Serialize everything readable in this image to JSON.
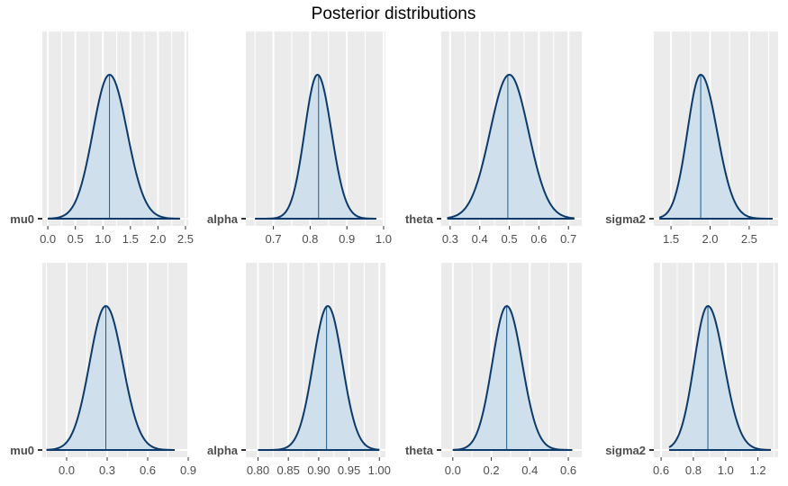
{
  "title": "Posterior distributions",
  "colors": {
    "panel_bg": "#ebebeb",
    "grid": "#ffffff",
    "density_line": "#0b3a6b",
    "density_fill": "#cfe0ec",
    "center_line": "#1b5d8c",
    "tick_text": "#4d4d4d"
  },
  "chart_data": [
    {
      "type": "area",
      "row": 1,
      "col": 1,
      "parameter": "mu0",
      "xticks": [
        "0.0",
        "0.5",
        "1.0",
        "1.5",
        "2.0",
        "2.5"
      ],
      "xtick_values": [
        0,
        0.5,
        1.0,
        1.5,
        2.0,
        2.5
      ],
      "xlim": [
        -0.1,
        2.55
      ],
      "range": [
        0.0,
        2.4
      ],
      "center": 1.12,
      "peak": 1.12,
      "sd_left": 0.3,
      "sd_right": 0.32
    },
    {
      "type": "area",
      "row": 1,
      "col": 2,
      "parameter": "alpha",
      "xticks": [
        "0.7",
        "0.8",
        "0.9",
        "1.0"
      ],
      "xtick_values": [
        0.7,
        0.8,
        0.9,
        1.0
      ],
      "xlim": [
        0.625,
        1.005
      ],
      "range": [
        0.65,
        0.98
      ],
      "center": 0.823,
      "peak": 0.82,
      "sd_left": 0.035,
      "sd_right": 0.038
    },
    {
      "type": "area",
      "row": 1,
      "col": 3,
      "parameter": "theta",
      "xticks": [
        "0.3",
        "0.4",
        "0.5",
        "0.6",
        "0.7"
      ],
      "xtick_values": [
        0.3,
        0.4,
        0.5,
        0.6,
        0.7
      ],
      "xlim": [
        0.27,
        0.745
      ],
      "range": [
        0.29,
        0.72
      ],
      "center": 0.495,
      "peak": 0.5,
      "sd_left": 0.065,
      "sd_right": 0.065
    },
    {
      "type": "area",
      "row": 1,
      "col": 4,
      "parameter": "sigma2",
      "xticks": [
        "1.5",
        "2.0",
        "2.5"
      ],
      "xtick_values": [
        1.5,
        2.0,
        2.5
      ],
      "xlim": [
        1.28,
        2.87
      ],
      "range": [
        1.35,
        2.8
      ],
      "center": 1.88,
      "peak": 1.88,
      "sd_left": 0.17,
      "sd_right": 0.21
    },
    {
      "type": "area",
      "row": 2,
      "col": 1,
      "parameter": "mu0",
      "xticks": [
        "0.0",
        "0.3",
        "0.6",
        "0.9"
      ],
      "xtick_values": [
        0.0,
        0.3,
        0.6,
        0.9
      ],
      "xlim": [
        -0.18,
        0.9
      ],
      "range": [
        -0.15,
        0.8
      ],
      "center": 0.29,
      "peak": 0.29,
      "sd_left": 0.12,
      "sd_right": 0.125
    },
    {
      "type": "area",
      "row": 2,
      "col": 2,
      "parameter": "alpha",
      "xticks": [
        "0.80",
        "0.85",
        "0.90",
        "0.95",
        "1.00"
      ],
      "xtick_values": [
        0.8,
        0.85,
        0.9,
        0.95,
        1.0
      ],
      "xlim": [
        0.78,
        1.01
      ],
      "range": [
        0.8,
        1.0
      ],
      "center": 0.913,
      "peak": 0.915,
      "sd_left": 0.024,
      "sd_right": 0.024
    },
    {
      "type": "area",
      "row": 2,
      "col": 3,
      "parameter": "theta",
      "xticks": [
        "0.0",
        "0.2",
        "0.4",
        "0.6"
      ],
      "xtick_values": [
        0.0,
        0.2,
        0.4,
        0.6
      ],
      "xlim": [
        -0.06,
        0.67
      ],
      "range": [
        0.0,
        0.62
      ],
      "center": 0.28,
      "peak": 0.28,
      "sd_left": 0.075,
      "sd_right": 0.08
    },
    {
      "type": "area",
      "row": 2,
      "col": 4,
      "parameter": "sigma2",
      "xticks": [
        "0.6",
        "0.8",
        "1.0",
        "1.2"
      ],
      "xtick_values": [
        0.6,
        0.8,
        1.0,
        1.2
      ],
      "xlim": [
        0.555,
        1.325
      ],
      "range": [
        0.65,
        1.28
      ],
      "center": 0.89,
      "peak": 0.89,
      "sd_left": 0.085,
      "sd_right": 0.1
    }
  ]
}
